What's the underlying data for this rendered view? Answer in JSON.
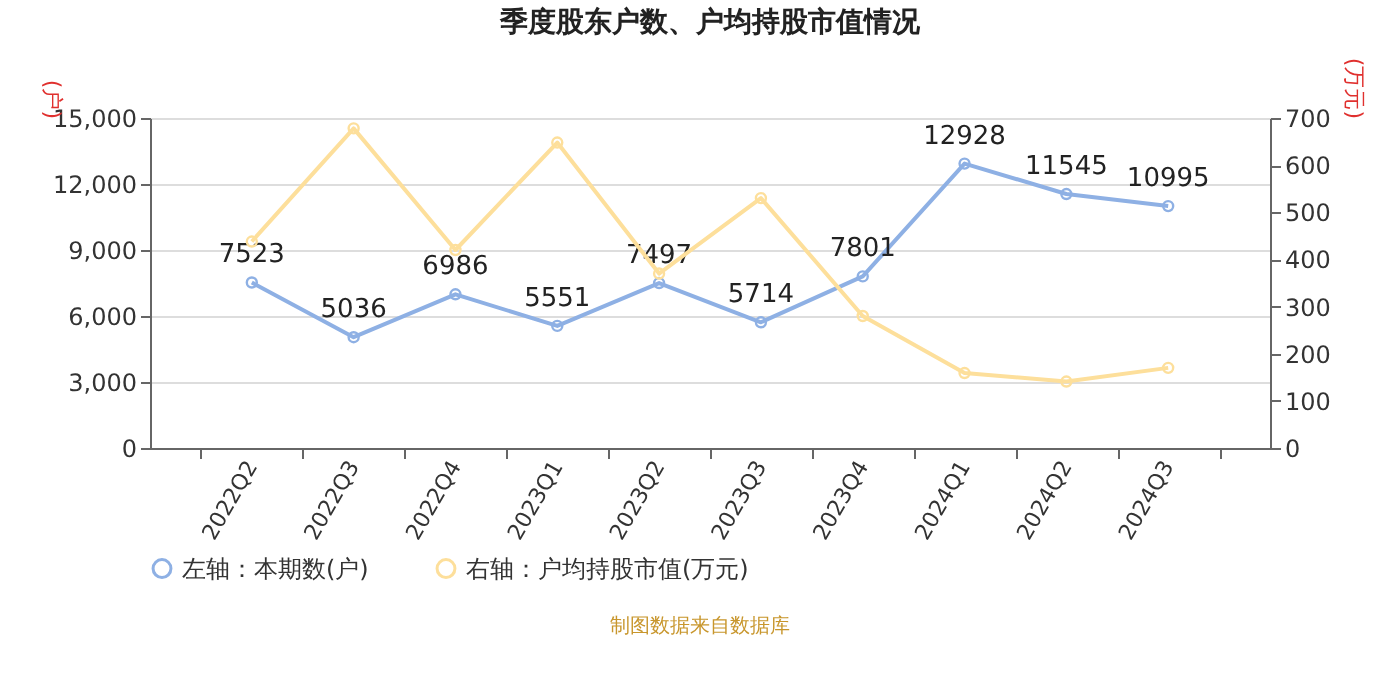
{
  "chart_data": {
    "type": "line",
    "title": "季度股东户数、户均持股市值情况",
    "categories": [
      "2022Q2",
      "2022Q3",
      "2022Q4",
      "2023Q1",
      "2023Q2",
      "2023Q3",
      "2023Q4",
      "2024Q1",
      "2024Q2",
      "2024Q3"
    ],
    "series": [
      {
        "name": "左轴：本期数(户)",
        "color": "#8eb0e4",
        "values": [
          7523,
          5036,
          6986,
          5551,
          7497,
          5714,
          7801,
          12928,
          11545,
          10995
        ],
        "value_labels": [
          "7523",
          "5036",
          "6986",
          "5551",
          "7497",
          "5714",
          "7801",
          "12928",
          "11545",
          "10995"
        ]
      },
      {
        "name": "右轴：户均持股市值(万元)",
        "color": "#fddf9b",
        "axis": "y2",
        "values": [
          438,
          678,
          420,
          648,
          370,
          530,
          280,
          159,
          141,
          170
        ]
      }
    ],
    "ylabel": "(户)",
    "y2label": "(万元)",
    "ylim": [
      0,
      15000
    ],
    "yticks": [
      {
        "value": 0,
        "label": "0"
      },
      {
        "value": 3000,
        "label": "3,000"
      },
      {
        "value": 6000,
        "label": "6,000"
      },
      {
        "value": 9000,
        "label": "9,000"
      },
      {
        "value": 12000,
        "label": "12,000"
      },
      {
        "value": 15000,
        "label": "15,000"
      }
    ],
    "y2lim": [
      0,
      700
    ],
    "y2ticks": [
      0,
      100,
      200,
      300,
      400,
      500,
      600,
      700
    ],
    "grid": "y",
    "legend": "bottom",
    "marker": "circle",
    "line_style": "solid",
    "annotations": [
      "制图数据来自数据库"
    ]
  }
}
